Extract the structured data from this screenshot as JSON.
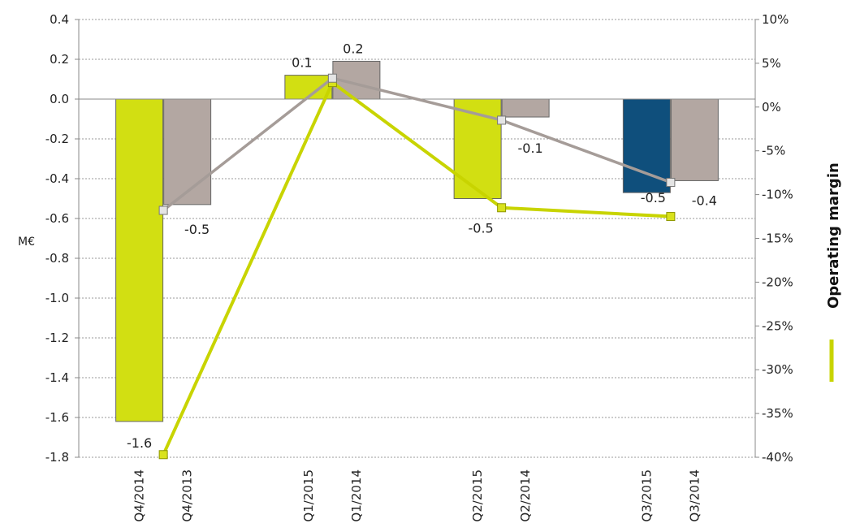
{
  "chart_data": {
    "type": "bar",
    "ylabel": "M€",
    "ylim": [
      -1.8,
      0.4
    ],
    "y_ticks": [
      "0.4",
      "0.2",
      "0.0",
      "-0.2",
      "-0.4",
      "-0.6",
      "-0.8",
      "-1.0",
      "-1.2",
      "-1.4",
      "-1.6",
      "-1.8"
    ],
    "y2lim": [
      -40,
      10
    ],
    "y2_ticks": [
      "10%",
      "5%",
      "0%",
      "-5%",
      "-10%",
      "-15%",
      "-20%",
      "-25%",
      "-30%",
      "-35%",
      "-40%"
    ],
    "grid": true,
    "groups": [
      {
        "bars": [
          {
            "category": "Q4/2014",
            "value": -1.62,
            "label": "-1.6",
            "color": "#d2df12"
          },
          {
            "category": "Q4/2013",
            "value": -0.53,
            "label": "-0.5",
            "color": "#b3a7a2"
          }
        ]
      },
      {
        "bars": [
          {
            "category": "Q1/2015",
            "value": 0.12,
            "label": "0.1",
            "color": "#d2df12"
          },
          {
            "category": "Q1/2014",
            "value": 0.19,
            "label": "0.2",
            "color": "#b3a7a2"
          }
        ]
      },
      {
        "bars": [
          {
            "category": "Q2/2015",
            "value": -0.5,
            "label": "-0.5",
            "color": "#d2df12"
          },
          {
            "category": "Q2/2014",
            "value": -0.09,
            "label": "-0.1",
            "color": "#b3a7a2"
          }
        ]
      },
      {
        "bars": [
          {
            "category": "Q3/2015",
            "value": -0.47,
            "label": "-0.5",
            "color": "#0f4f7c"
          },
          {
            "category": "Q3/2014",
            "value": -0.41,
            "label": "-0.4",
            "color": "#b3a7a2"
          }
        ]
      }
    ],
    "margin_lines": [
      {
        "color": "#c8d400",
        "values_pct": [
          -39.7,
          2.8,
          -11.5,
          -12.5
        ]
      },
      {
        "color": "#a59c98",
        "values_pct": [
          -11.8,
          3.3,
          -1.5,
          -8.6
        ]
      }
    ],
    "legend": {
      "label": "Operating margin",
      "color": "#c8d400",
      "position": "right"
    }
  }
}
